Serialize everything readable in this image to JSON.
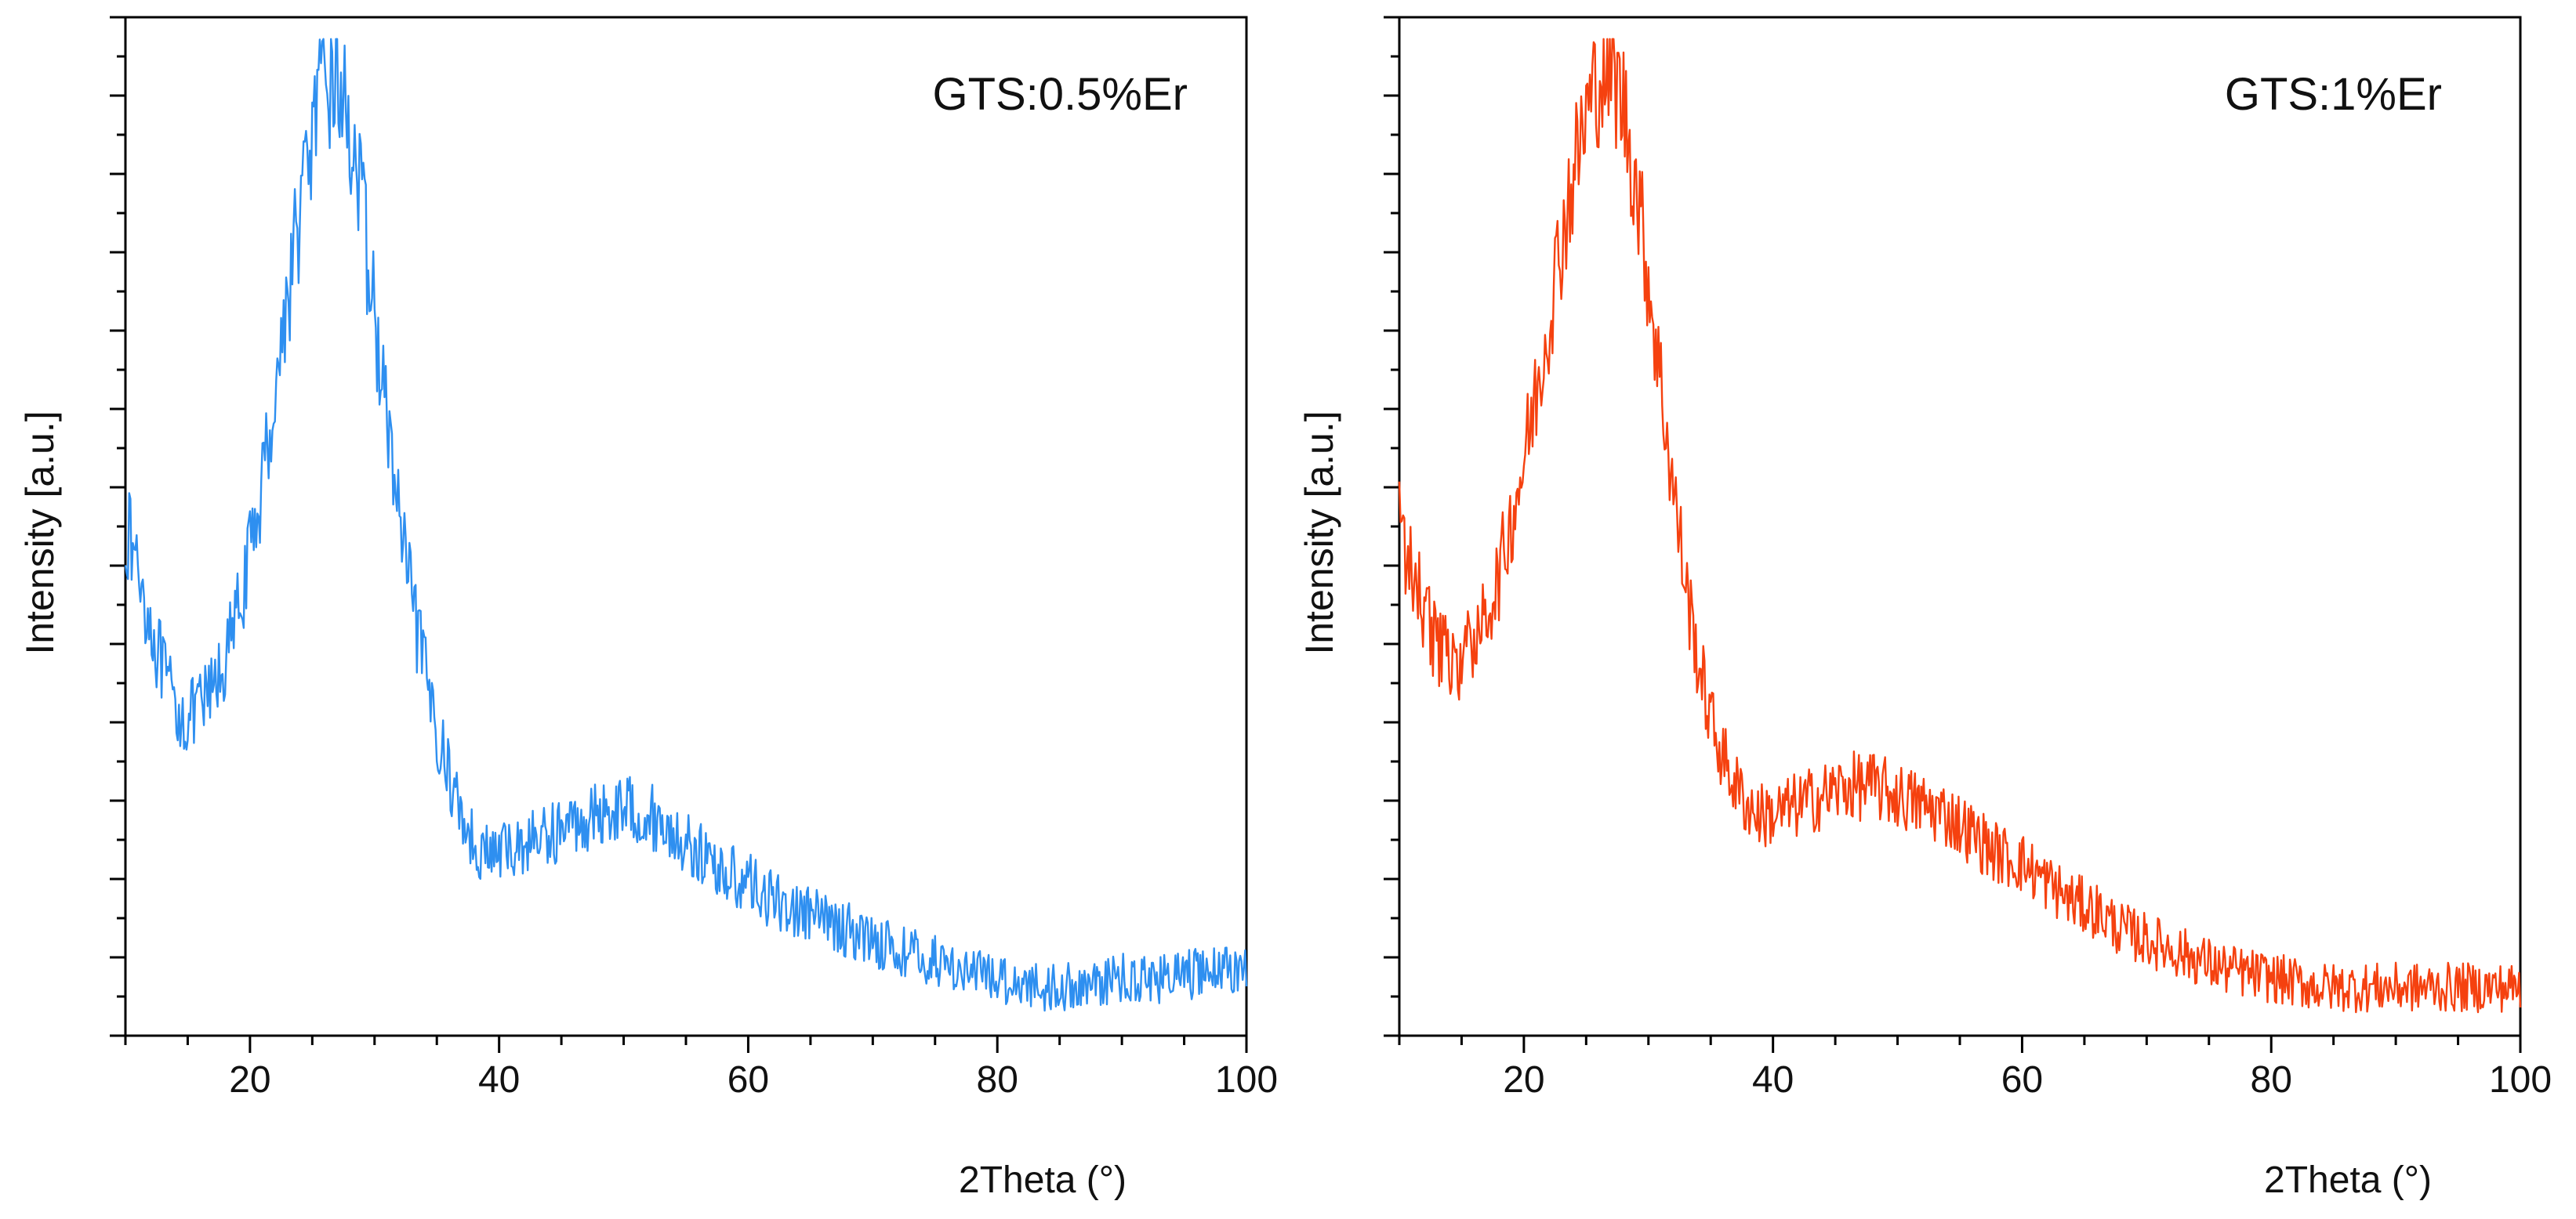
{
  "chart_data": [
    {
      "type": "line",
      "title": "GTS:0.5%Er",
      "xlabel": "2Theta (°)",
      "ylabel": "Intensity [a.u.]",
      "xlim": [
        10,
        100
      ],
      "ylim": [
        0,
        1
      ],
      "xticks": [
        20,
        40,
        60,
        80,
        100
      ],
      "grid": false,
      "legend": "none",
      "color": "#2e8ff0",
      "series": [
        {
          "x": [
            10,
            11,
            12,
            13,
            14,
            15,
            16,
            17,
            18,
            19,
            20,
            21,
            22,
            23,
            24,
            25,
            26,
            27,
            28,
            29,
            30,
            31,
            32,
            33,
            34,
            35,
            36,
            37,
            38,
            39,
            40,
            42,
            44,
            46,
            48,
            50,
            52,
            54,
            56,
            58,
            60,
            62,
            64,
            66,
            68,
            70,
            72,
            74,
            76,
            78,
            80,
            82,
            84,
            86,
            88,
            90,
            92,
            94,
            96,
            98,
            100
          ],
          "y": [
            0.5,
            0.46,
            0.4,
            0.35,
            0.31,
            0.3,
            0.31,
            0.33,
            0.36,
            0.41,
            0.47,
            0.55,
            0.64,
            0.74,
            0.83,
            0.91,
            0.96,
            0.97,
            0.92,
            0.83,
            0.72,
            0.61,
            0.51,
            0.42,
            0.35,
            0.29,
            0.24,
            0.2,
            0.17,
            0.16,
            0.16,
            0.17,
            0.18,
            0.19,
            0.2,
            0.21,
            0.2,
            0.18,
            0.16,
            0.14,
            0.13,
            0.11,
            0.1,
            0.09,
            0.08,
            0.07,
            0.06,
            0.05,
            0.045,
            0.035,
            0.03,
            0.025,
            0.02,
            0.02,
            0.025,
            0.03,
            0.03,
            0.03,
            0.035,
            0.04,
            0.04
          ]
        }
      ]
    },
    {
      "type": "line",
      "title": "GTS:1%Er",
      "xlabel": "2Theta (°)",
      "ylabel": "Intensity [a.u.]",
      "xlim": [
        10,
        100
      ],
      "ylim": [
        0,
        1
      ],
      "xticks": [
        20,
        40,
        60,
        80,
        100
      ],
      "grid": false,
      "legend": "none",
      "color": "#f5410f",
      "series": [
        {
          "x": [
            10,
            11,
            12,
            13,
            14,
            15,
            16,
            17,
            18,
            19,
            20,
            21,
            22,
            23,
            24,
            25,
            26,
            27,
            28,
            29,
            30,
            31,
            32,
            33,
            34,
            35,
            36,
            37,
            38,
            39,
            40,
            42,
            44,
            46,
            48,
            50,
            52,
            54,
            56,
            58,
            60,
            62,
            64,
            66,
            68,
            70,
            72,
            74,
            76,
            78,
            80,
            82,
            84,
            86,
            88,
            90,
            92,
            94,
            96,
            98,
            100
          ],
          "y": [
            0.5,
            0.46,
            0.41,
            0.38,
            0.36,
            0.36,
            0.38,
            0.41,
            0.45,
            0.51,
            0.57,
            0.64,
            0.72,
            0.8,
            0.87,
            0.93,
            0.97,
            0.98,
            0.94,
            0.86,
            0.76,
            0.65,
            0.54,
            0.44,
            0.36,
            0.3,
            0.26,
            0.23,
            0.21,
            0.2,
            0.2,
            0.21,
            0.22,
            0.23,
            0.23,
            0.22,
            0.21,
            0.2,
            0.18,
            0.16,
            0.15,
            0.13,
            0.11,
            0.1,
            0.08,
            0.07,
            0.06,
            0.05,
            0.04,
            0.035,
            0.03,
            0.025,
            0.02,
            0.02,
            0.02,
            0.02,
            0.02,
            0.02,
            0.02,
            0.02,
            0.02
          ]
        }
      ]
    }
  ]
}
